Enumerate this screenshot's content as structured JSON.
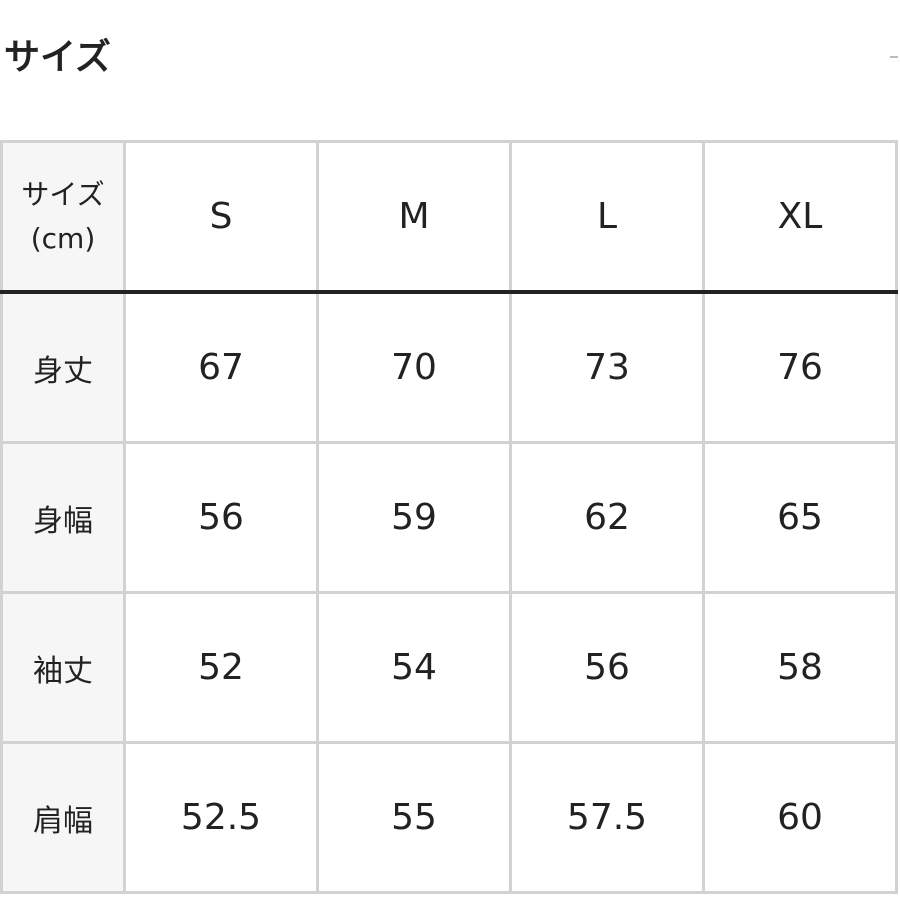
{
  "title": "サイズ",
  "table": {
    "header_label": "サイズ",
    "header_unit": "(cm)",
    "sizes": [
      "S",
      "M",
      "L",
      "XL"
    ],
    "rows": [
      {
        "label": "身丈",
        "values": [
          "67",
          "70",
          "73",
          "76"
        ]
      },
      {
        "label": "身幅",
        "values": [
          "56",
          "59",
          "62",
          "65"
        ]
      },
      {
        "label": "袖丈",
        "values": [
          "52",
          "54",
          "56",
          "58"
        ]
      },
      {
        "label": "肩幅",
        "values": [
          "52.5",
          "55",
          "57.5",
          "60"
        ]
      }
    ]
  }
}
